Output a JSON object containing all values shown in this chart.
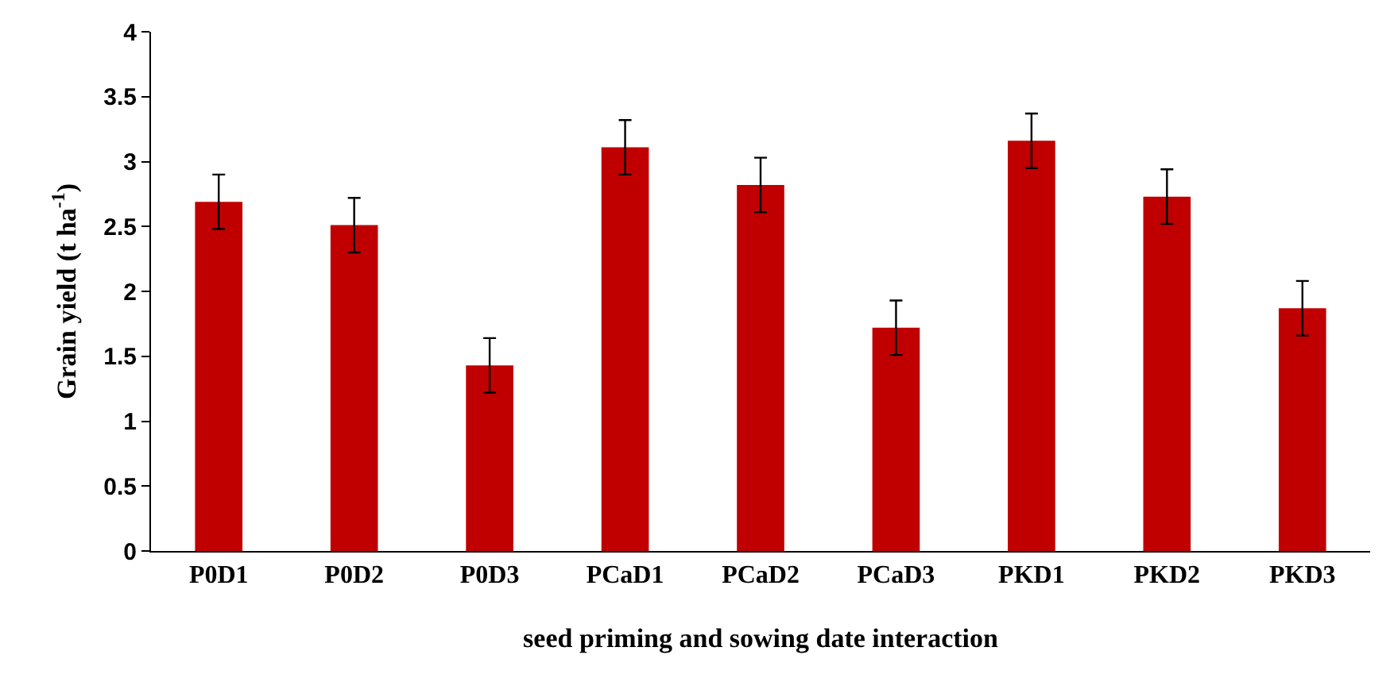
{
  "chart_data": {
    "type": "bar",
    "xlabel": "seed priming and sowing date interaction",
    "ylabel": "Grain yield (t ha$^{-1}$)",
    "categories": [
      "P0D1",
      "P0D2",
      "P0D3",
      "PCaD1",
      "PCaD2",
      "PCaD3",
      "PKD1",
      "PKD2",
      "PKD3"
    ],
    "values": [
      2.69,
      2.51,
      1.43,
      3.11,
      2.82,
      1.72,
      3.16,
      2.73,
      1.87
    ],
    "errors": [
      0.21,
      0.21,
      0.21,
      0.21,
      0.21,
      0.21,
      0.21,
      0.21,
      0.21
    ],
    "color": "#c00000",
    "ylim": [
      0,
      4
    ],
    "yticks": [
      0,
      0.5,
      1,
      1.5,
      2,
      2.5,
      3,
      3.5,
      4
    ],
    "grid": false,
    "legend": false
  }
}
